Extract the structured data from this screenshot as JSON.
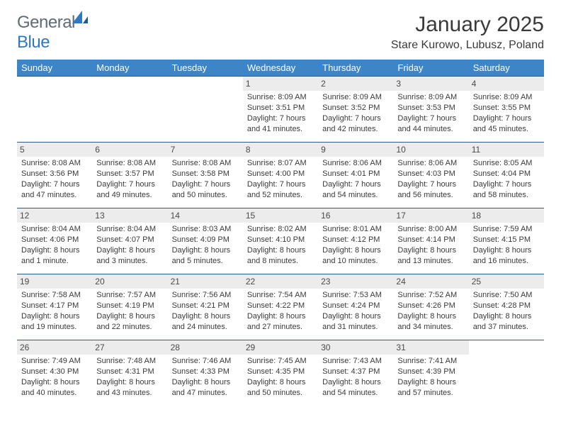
{
  "brand": {
    "word1": "General",
    "word2": "Blue"
  },
  "title": "January 2025",
  "location": "Stare Kurowo, Lubusz, Poland",
  "colors": {
    "header_bg": "#3d85c6",
    "header_text": "#ffffff",
    "cell_border": "#2f5b8a",
    "daynum_bg": "#ececec",
    "text": "#3a3a3a",
    "logo_gray": "#5f6b76",
    "logo_blue": "#2f78c2"
  },
  "typography": {
    "title_fontsize": 30,
    "location_fontsize": 16,
    "header_fontsize": 13,
    "cell_fontsize": 11,
    "daynum_fontsize": 12
  },
  "day_headers": [
    "Sunday",
    "Monday",
    "Tuesday",
    "Wednesday",
    "Thursday",
    "Friday",
    "Saturday"
  ],
  "weeks": [
    [
      {
        "n": "",
        "lines": [
          "",
          "",
          "",
          ""
        ]
      },
      {
        "n": "",
        "lines": [
          "",
          "",
          "",
          ""
        ]
      },
      {
        "n": "",
        "lines": [
          "",
          "",
          "",
          ""
        ]
      },
      {
        "n": "1",
        "lines": [
          "Sunrise: 8:09 AM",
          "Sunset: 3:51 PM",
          "Daylight: 7 hours",
          "and 41 minutes."
        ]
      },
      {
        "n": "2",
        "lines": [
          "Sunrise: 8:09 AM",
          "Sunset: 3:52 PM",
          "Daylight: 7 hours",
          "and 42 minutes."
        ]
      },
      {
        "n": "3",
        "lines": [
          "Sunrise: 8:09 AM",
          "Sunset: 3:53 PM",
          "Daylight: 7 hours",
          "and 44 minutes."
        ]
      },
      {
        "n": "4",
        "lines": [
          "Sunrise: 8:09 AM",
          "Sunset: 3:55 PM",
          "Daylight: 7 hours",
          "and 45 minutes."
        ]
      }
    ],
    [
      {
        "n": "5",
        "lines": [
          "Sunrise: 8:08 AM",
          "Sunset: 3:56 PM",
          "Daylight: 7 hours",
          "and 47 minutes."
        ]
      },
      {
        "n": "6",
        "lines": [
          "Sunrise: 8:08 AM",
          "Sunset: 3:57 PM",
          "Daylight: 7 hours",
          "and 49 minutes."
        ]
      },
      {
        "n": "7",
        "lines": [
          "Sunrise: 8:08 AM",
          "Sunset: 3:58 PM",
          "Daylight: 7 hours",
          "and 50 minutes."
        ]
      },
      {
        "n": "8",
        "lines": [
          "Sunrise: 8:07 AM",
          "Sunset: 4:00 PM",
          "Daylight: 7 hours",
          "and 52 minutes."
        ]
      },
      {
        "n": "9",
        "lines": [
          "Sunrise: 8:06 AM",
          "Sunset: 4:01 PM",
          "Daylight: 7 hours",
          "and 54 minutes."
        ]
      },
      {
        "n": "10",
        "lines": [
          "Sunrise: 8:06 AM",
          "Sunset: 4:03 PM",
          "Daylight: 7 hours",
          "and 56 minutes."
        ]
      },
      {
        "n": "11",
        "lines": [
          "Sunrise: 8:05 AM",
          "Sunset: 4:04 PM",
          "Daylight: 7 hours",
          "and 58 minutes."
        ]
      }
    ],
    [
      {
        "n": "12",
        "lines": [
          "Sunrise: 8:04 AM",
          "Sunset: 4:06 PM",
          "Daylight: 8 hours",
          "and 1 minute."
        ]
      },
      {
        "n": "13",
        "lines": [
          "Sunrise: 8:04 AM",
          "Sunset: 4:07 PM",
          "Daylight: 8 hours",
          "and 3 minutes."
        ]
      },
      {
        "n": "14",
        "lines": [
          "Sunrise: 8:03 AM",
          "Sunset: 4:09 PM",
          "Daylight: 8 hours",
          "and 5 minutes."
        ]
      },
      {
        "n": "15",
        "lines": [
          "Sunrise: 8:02 AM",
          "Sunset: 4:10 PM",
          "Daylight: 8 hours",
          "and 8 minutes."
        ]
      },
      {
        "n": "16",
        "lines": [
          "Sunrise: 8:01 AM",
          "Sunset: 4:12 PM",
          "Daylight: 8 hours",
          "and 10 minutes."
        ]
      },
      {
        "n": "17",
        "lines": [
          "Sunrise: 8:00 AM",
          "Sunset: 4:14 PM",
          "Daylight: 8 hours",
          "and 13 minutes."
        ]
      },
      {
        "n": "18",
        "lines": [
          "Sunrise: 7:59 AM",
          "Sunset: 4:15 PM",
          "Daylight: 8 hours",
          "and 16 minutes."
        ]
      }
    ],
    [
      {
        "n": "19",
        "lines": [
          "Sunrise: 7:58 AM",
          "Sunset: 4:17 PM",
          "Daylight: 8 hours",
          "and 19 minutes."
        ]
      },
      {
        "n": "20",
        "lines": [
          "Sunrise: 7:57 AM",
          "Sunset: 4:19 PM",
          "Daylight: 8 hours",
          "and 22 minutes."
        ]
      },
      {
        "n": "21",
        "lines": [
          "Sunrise: 7:56 AM",
          "Sunset: 4:21 PM",
          "Daylight: 8 hours",
          "and 24 minutes."
        ]
      },
      {
        "n": "22",
        "lines": [
          "Sunrise: 7:54 AM",
          "Sunset: 4:22 PM",
          "Daylight: 8 hours",
          "and 27 minutes."
        ]
      },
      {
        "n": "23",
        "lines": [
          "Sunrise: 7:53 AM",
          "Sunset: 4:24 PM",
          "Daylight: 8 hours",
          "and 31 minutes."
        ]
      },
      {
        "n": "24",
        "lines": [
          "Sunrise: 7:52 AM",
          "Sunset: 4:26 PM",
          "Daylight: 8 hours",
          "and 34 minutes."
        ]
      },
      {
        "n": "25",
        "lines": [
          "Sunrise: 7:50 AM",
          "Sunset: 4:28 PM",
          "Daylight: 8 hours",
          "and 37 minutes."
        ]
      }
    ],
    [
      {
        "n": "26",
        "lines": [
          "Sunrise: 7:49 AM",
          "Sunset: 4:30 PM",
          "Daylight: 8 hours",
          "and 40 minutes."
        ]
      },
      {
        "n": "27",
        "lines": [
          "Sunrise: 7:48 AM",
          "Sunset: 4:31 PM",
          "Daylight: 8 hours",
          "and 43 minutes."
        ]
      },
      {
        "n": "28",
        "lines": [
          "Sunrise: 7:46 AM",
          "Sunset: 4:33 PM",
          "Daylight: 8 hours",
          "and 47 minutes."
        ]
      },
      {
        "n": "29",
        "lines": [
          "Sunrise: 7:45 AM",
          "Sunset: 4:35 PM",
          "Daylight: 8 hours",
          "and 50 minutes."
        ]
      },
      {
        "n": "30",
        "lines": [
          "Sunrise: 7:43 AM",
          "Sunset: 4:37 PM",
          "Daylight: 8 hours",
          "and 54 minutes."
        ]
      },
      {
        "n": "31",
        "lines": [
          "Sunrise: 7:41 AM",
          "Sunset: 4:39 PM",
          "Daylight: 8 hours",
          "and 57 minutes."
        ]
      },
      {
        "n": "",
        "lines": [
          "",
          "",
          "",
          ""
        ]
      }
    ]
  ]
}
